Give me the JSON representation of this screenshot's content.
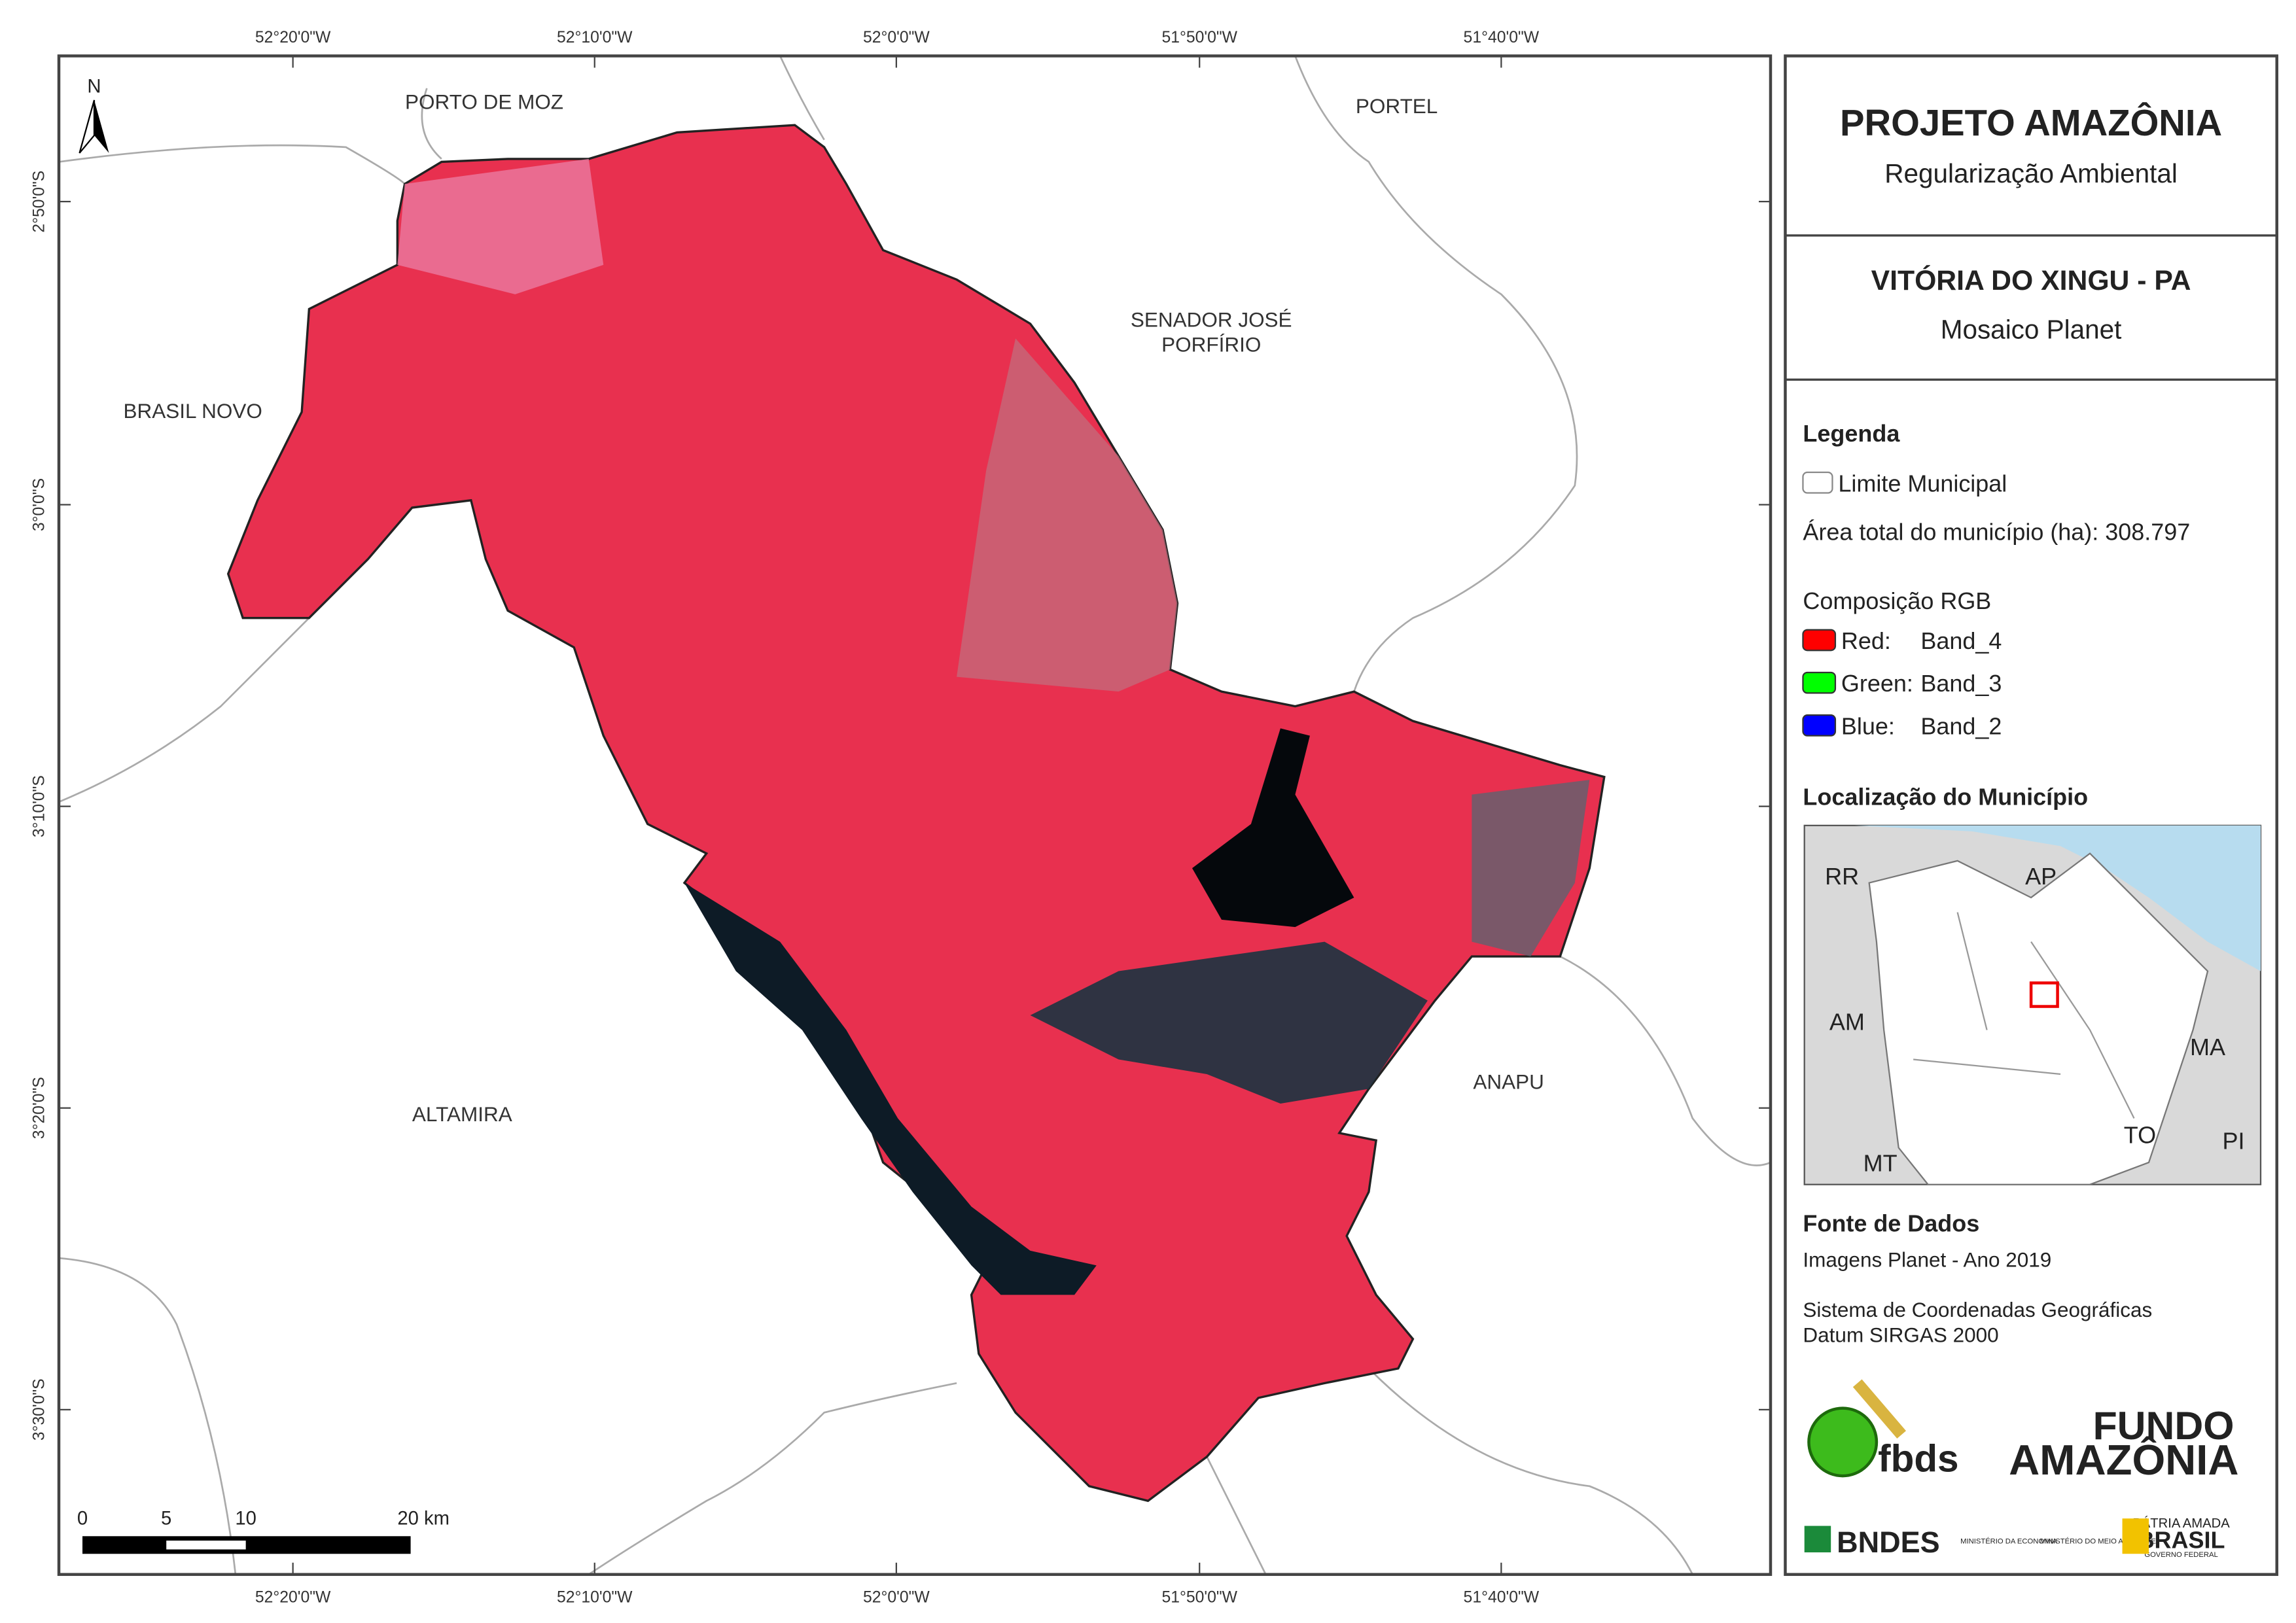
{
  "header": {
    "title": "PROJETO AMAZÔNIA",
    "subtitle": "Regularização Ambiental"
  },
  "map_title": {
    "title": "VITÓRIA DO XINGU - PA",
    "subtitle": "Mosaico Planet"
  },
  "legend": {
    "heading": "Legenda",
    "boundary": "Limite Municipal",
    "area": "Área total do município (ha): 308.797",
    "rgb_heading": "Composição RGB",
    "rgb": [
      {
        "label": "Red:",
        "band": "Band_4",
        "color": "#ff0000"
      },
      {
        "label": "Green:",
        "band": "Band_3",
        "color": "#00ff00"
      },
      {
        "label": "Blue:",
        "band": "Band_2",
        "color": "#0000ff"
      }
    ]
  },
  "location": {
    "heading": "Localização do Município",
    "labels": [
      "RR",
      "AP",
      "AM",
      "MA",
      "TO",
      "MT",
      "PI"
    ]
  },
  "sources": {
    "heading": "Fonte de Dados",
    "lines": [
      "Imagens Planet - Ano 2019",
      "Sistema de Coordenadas Geográficas",
      "Datum SIRGAS 2000"
    ]
  },
  "logos": {
    "fbds": "fbds",
    "fundo": "FUNDO",
    "amazonia": "AMAZÔNIA",
    "bndes": "BNDES",
    "min1": "MINISTÉRIO DA ECONOMIA",
    "min2": "MINISTÉRIO DO MEIO AMBIENTE",
    "patria": "PÁTRIA AMADA",
    "brasil": "BRASIL",
    "gov": "GOVERNO FEDERAL"
  },
  "map": {
    "north": "N",
    "longitudes": [
      "52°20'0\"W",
      "52°10'0\"W",
      "52°0'0\"W",
      "51°50'0\"W",
      "51°40'0\"W"
    ],
    "latitudes": [
      "2°50'0\"S",
      "3°0'0\"S",
      "3°10'0\"S",
      "3°20'0\"S",
      "3°30'0\"S"
    ],
    "places": [
      "PORTO DE MOZ",
      "PORTEL",
      "SENADOR JOSÉ",
      "PORFÍRIO",
      "BRASIL NOVO",
      "ALTAMIRA",
      "ANAPU"
    ],
    "scale": [
      "0",
      "5",
      "10",
      "20 km"
    ]
  }
}
